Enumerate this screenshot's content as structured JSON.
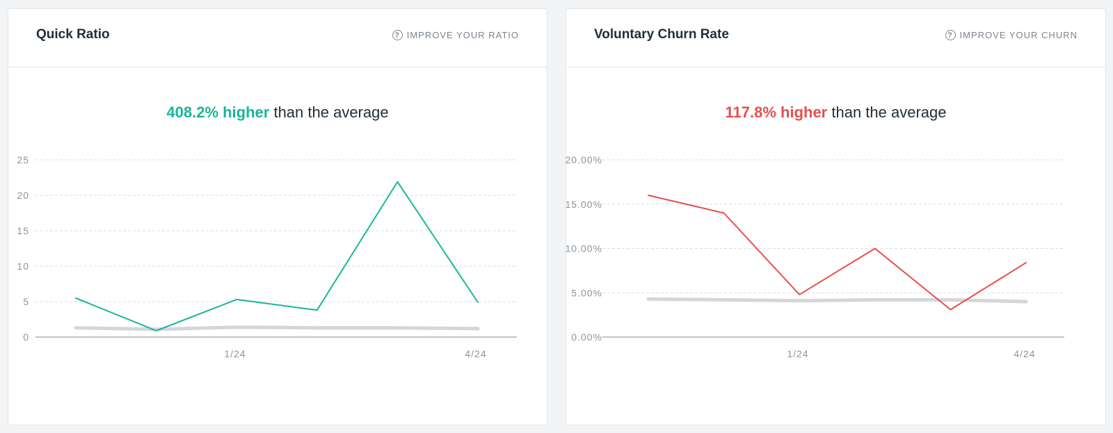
{
  "cards": [
    {
      "title": "Quick Ratio",
      "link_label": "IMPROVE YOUR RATIO",
      "headline_pct": "408.2% higher",
      "headline_rest": " than the average",
      "accent_color": "#1ab59a"
    },
    {
      "title": "Voluntary Churn Rate",
      "link_label": "IMPROVE YOUR CHURN",
      "headline_pct": "117.8% higher",
      "headline_rest": " than the average",
      "accent_color": "#e5504c"
    }
  ],
  "chart_data": [
    {
      "type": "line",
      "y_ticks": [
        "0",
        "5",
        "10",
        "15",
        "20",
        "25"
      ],
      "ylim": [
        0,
        25
      ],
      "x_tick_labels": [
        "1/24",
        "4/24"
      ],
      "x_tick_index": [
        2,
        5
      ],
      "series": [
        {
          "values": [
            5.5,
            0.9,
            5.3,
            3.8,
            21.9,
            4.9
          ],
          "color": "#1ab59a"
        },
        {
          "values": [
            1.3,
            1.1,
            1.4,
            1.3,
            1.3,
            1.2
          ],
          "color": "#d4d7da"
        }
      ]
    },
    {
      "type": "line",
      "y_ticks": [
        "0.00%",
        "5.00%",
        "10.00%",
        "15.00%",
        "20.00%"
      ],
      "ylim": [
        0,
        20
      ],
      "x_tick_labels": [
        "1/24",
        "4/24"
      ],
      "x_tick_index": [
        2,
        5
      ],
      "series": [
        {
          "values": [
            16.0,
            14.0,
            4.8,
            10.0,
            3.1,
            8.4
          ],
          "color": "#e5504c"
        },
        {
          "values": [
            4.3,
            4.2,
            4.1,
            4.2,
            4.2,
            4.0
          ],
          "color": "#d4d7da"
        }
      ]
    }
  ]
}
